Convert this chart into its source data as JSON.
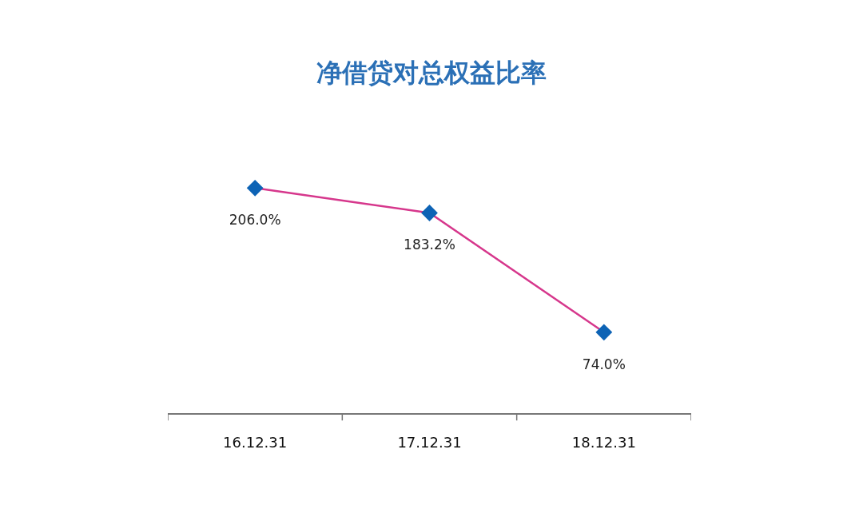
{
  "chart_data": {
    "type": "line",
    "title": "净借贷对总权益比率",
    "categories": [
      "16.12.31",
      "17.12.31",
      "18.12.31"
    ],
    "series": [
      {
        "color": "#d6378c",
        "colors": [
          "#0d63b5",
          "#0d63b5",
          "#0d63b5"
        ],
        "values": [
          206.0,
          183.2,
          74.0
        ],
        "value_labels": [
          "206.0%",
          "183.2%",
          "74.0%"
        ]
      }
    ],
    "marker": "diamond",
    "line_style": "solid",
    "legend": false,
    "tick_labels": "x"
  }
}
